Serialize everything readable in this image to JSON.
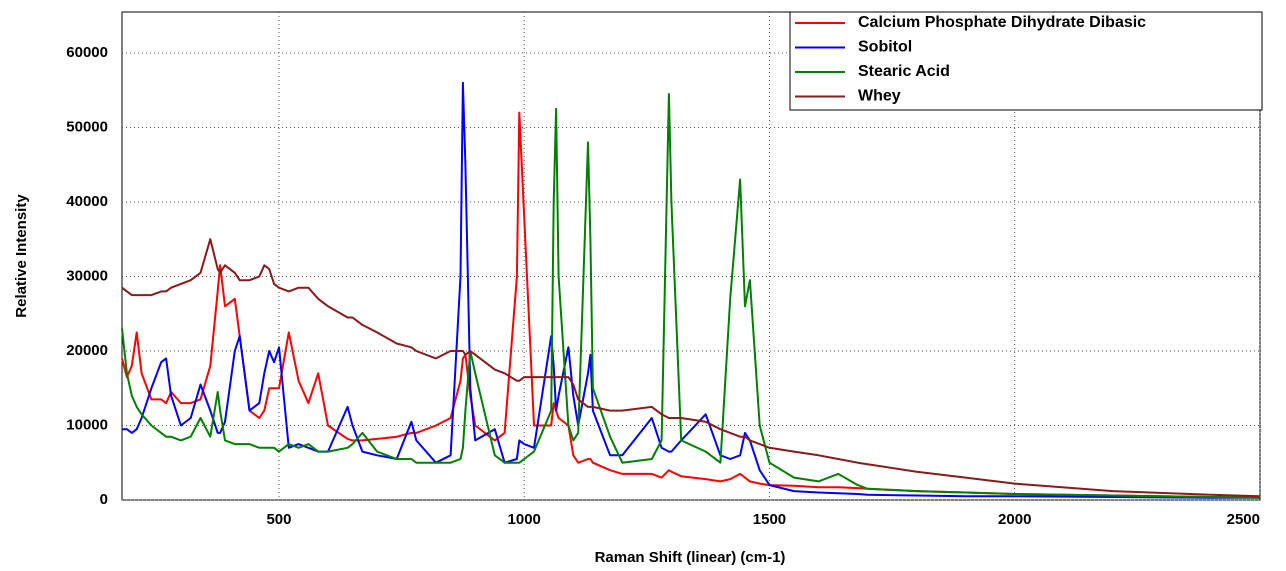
{
  "chart_data": {
    "type": "line",
    "xlabel": "Raman Shift (linear) (cm-1)",
    "ylabel": "Relative Intensity",
    "xlim": [
      180,
      2500
    ],
    "ylim": [
      0,
      65500
    ],
    "xticks": [
      500,
      1000,
      1500,
      2000,
      2500
    ],
    "yticks": [
      0,
      10000,
      20000,
      30000,
      40000,
      50000,
      60000
    ],
    "grid": true,
    "legend": "upper right",
    "x": [
      180,
      190,
      200,
      210,
      220,
      240,
      260,
      270,
      280,
      300,
      320,
      340,
      360,
      375,
      380,
      390,
      410,
      420,
      440,
      460,
      470,
      480,
      490,
      500,
      520,
      540,
      560,
      580,
      600,
      640,
      650,
      670,
      700,
      740,
      770,
      780,
      820,
      850,
      870,
      875,
      880,
      890,
      900,
      940,
      960,
      985,
      990,
      1000,
      1020,
      1055,
      1060,
      1065,
      1070,
      1090,
      1100,
      1110,
      1130,
      1135,
      1140,
      1175,
      1200,
      1260,
      1280,
      1295,
      1300,
      1320,
      1370,
      1400,
      1420,
      1440,
      1450,
      1460,
      1480,
      1500,
      1550,
      1600,
      1640,
      1680,
      1700,
      1800,
      1900,
      2000,
      2200,
      2400,
      2500
    ],
    "series": [
      {
        "name": "Calcium Phosphate Dihydrate Dibasic",
        "color": "#ff0000",
        "values": [
          19000,
          16500,
          18000,
          22500,
          17000,
          13500,
          13500,
          13000,
          14500,
          13000,
          13000,
          13500,
          18000,
          28000,
          31500,
          26000,
          27000,
          22000,
          12000,
          11000,
          12000,
          15000,
          15000,
          15000,
          22500,
          16000,
          13000,
          17000,
          10000,
          8200,
          8000,
          8000,
          8200,
          8500,
          9000,
          9000,
          10000,
          11000,
          16000,
          19000,
          19500,
          14000,
          10000,
          8000,
          9000,
          30000,
          52000,
          38000,
          10000,
          10000,
          13000,
          12000,
          11000,
          10000,
          6000,
          5000,
          5500,
          5500,
          5000,
          4000,
          3500,
          3500,
          3000,
          4000,
          3800,
          3200,
          2800,
          2500,
          2800,
          3500,
          3000,
          2500,
          2200,
          2000,
          1900,
          1700,
          1700,
          1600,
          1500,
          1200,
          1000,
          800,
          600,
          400,
          350
        ]
      },
      {
        "name": "Sobitol",
        "color": "#0000ff",
        "values": [
          9500,
          9500,
          9000,
          9500,
          11000,
          15000,
          18500,
          19000,
          14000,
          10000,
          11000,
          15500,
          12000,
          9000,
          9000,
          10500,
          20000,
          22000,
          12000,
          13000,
          17000,
          20000,
          18500,
          20500,
          7000,
          7500,
          7000,
          6500,
          6500,
          12500,
          10000,
          6500,
          6000,
          5500,
          10500,
          8000,
          5000,
          6000,
          30000,
          56000,
          45000,
          15000,
          8000,
          9500,
          5000,
          5500,
          8000,
          7500,
          7000,
          22000,
          18000,
          12000,
          14000,
          20500,
          14000,
          10000,
          17000,
          19500,
          12000,
          6000,
          6000,
          11000,
          7000,
          6500,
          6500,
          8000,
          11500,
          6000,
          5500,
          6000,
          9000,
          8000,
          4000,
          2000,
          1200,
          1000,
          900,
          800,
          700,
          600,
          500,
          500,
          400,
          300,
          300
        ]
      },
      {
        "name": "Stearic Acid",
        "color": "#008000",
        "values": [
          23000,
          17000,
          14000,
          12500,
          11500,
          10000,
          9000,
          8500,
          8500,
          8000,
          8500,
          11000,
          8500,
          14500,
          12000,
          8000,
          7500,
          7500,
          7500,
          7000,
          7000,
          7000,
          7000,
          6500,
          7500,
          7000,
          7500,
          6500,
          6500,
          7000,
          7500,
          9000,
          6500,
          5500,
          5500,
          5000,
          5000,
          5000,
          5500,
          7000,
          12000,
          20000,
          17000,
          6000,
          5000,
          5000,
          5000,
          5500,
          6500,
          12000,
          40000,
          52500,
          30000,
          10000,
          8000,
          9000,
          48000,
          35000,
          15000,
          8500,
          5000,
          5500,
          8000,
          54500,
          40000,
          8000,
          6500,
          5000,
          27000,
          43000,
          26000,
          29500,
          10000,
          5000,
          3000,
          2500,
          3500,
          2000,
          1500,
          1200,
          1000,
          800,
          600,
          400,
          300
        ]
      },
      {
        "name": "Whey",
        "color": "#8b1a1a",
        "values": [
          28500,
          28000,
          27500,
          27500,
          27500,
          27500,
          28000,
          28000,
          28500,
          29000,
          29500,
          30500,
          35000,
          31000,
          30500,
          31500,
          30500,
          29500,
          29500,
          30000,
          31500,
          31000,
          29000,
          28500,
          28000,
          28500,
          28500,
          27000,
          26000,
          24500,
          24500,
          23500,
          22500,
          21000,
          20500,
          20000,
          19000,
          20000,
          20000,
          20000,
          19500,
          20000,
          19500,
          17500,
          17000,
          16000,
          16000,
          16500,
          16500,
          16500,
          16500,
          16500,
          16500,
          16500,
          15500,
          13500,
          12500,
          12500,
          12500,
          12000,
          12000,
          12500,
          11500,
          11000,
          11000,
          11000,
          10500,
          9500,
          9000,
          8500,
          8500,
          8000,
          7500,
          7000,
          6500,
          6000,
          5500,
          5000,
          4800,
          3800,
          3000,
          2200,
          1200,
          700,
          500
        ]
      }
    ]
  }
}
